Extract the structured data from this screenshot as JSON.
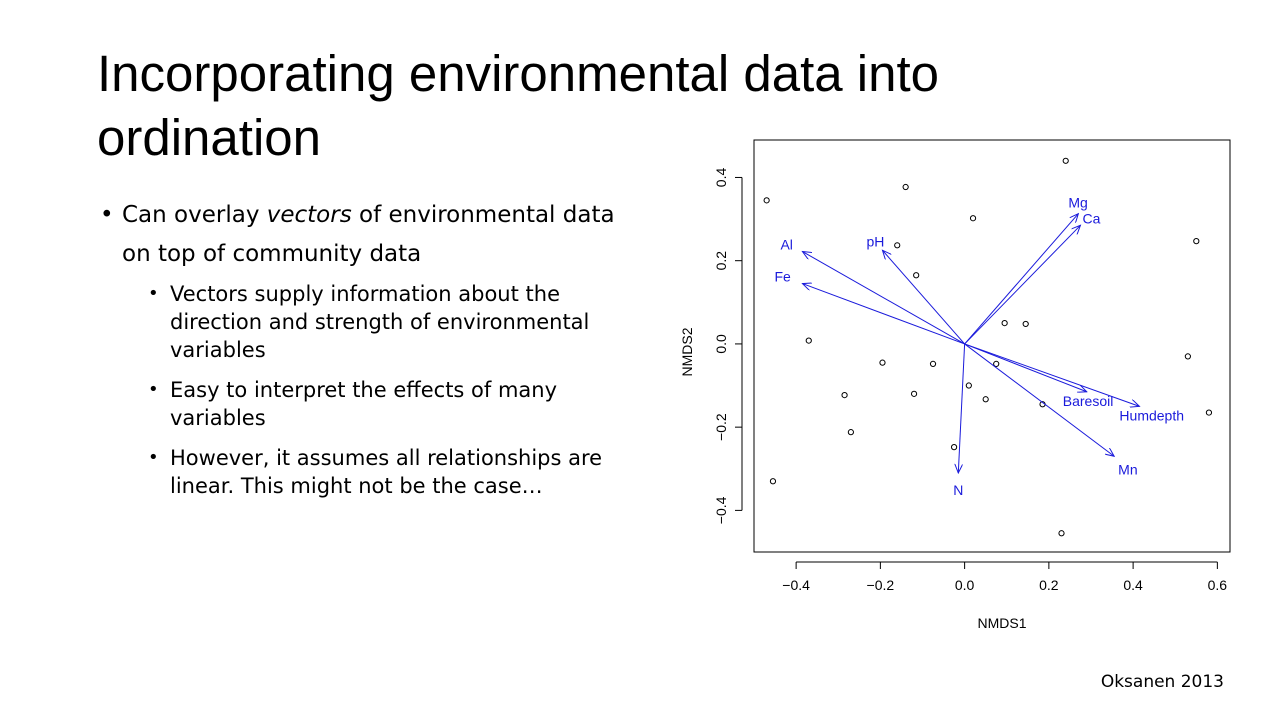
{
  "slide": {
    "title": "Incorporating environmental data into ordination",
    "bullet1": {
      "before": "Can overlay ",
      "emphasis": "vectors",
      "after": " of environmental  data on top of community data"
    },
    "sub_bullets": [
      "Vectors supply information about the direction and strength of environmental variables",
      "Easy to interpret the effects of many variables",
      "However, it assumes all relationships are linear. This might not be the case…"
    ],
    "citation": "Oksanen 2013"
  },
  "chart_data": {
    "type": "scatter",
    "xlabel": "NMDS1",
    "ylabel": "NMDS2",
    "xlim": [
      -0.5,
      0.63
    ],
    "ylim": [
      -0.5,
      0.49
    ],
    "x_ticks": [
      -0.4,
      -0.2,
      0.0,
      0.2,
      0.4,
      0.6
    ],
    "x_tick_labels": [
      "−0.4",
      "−0.2",
      "0.0",
      "0.2",
      "0.4",
      "0.6"
    ],
    "y_ticks": [
      -0.4,
      -0.2,
      0.0,
      0.2,
      0.4
    ],
    "y_tick_labels": [
      "−0.4",
      "−0.2",
      "0.0",
      "0.2",
      "0.4"
    ],
    "points": [
      {
        "x": -0.47,
        "y": 0.345
      },
      {
        "x": -0.14,
        "y": 0.377
      },
      {
        "x": 0.02,
        "y": 0.302
      },
      {
        "x": 0.24,
        "y": 0.44
      },
      {
        "x": 0.55,
        "y": 0.247
      },
      {
        "x": -0.16,
        "y": 0.237
      },
      {
        "x": -0.115,
        "y": 0.165
      },
      {
        "x": -0.37,
        "y": 0.008
      },
      {
        "x": 0.095,
        "y": 0.05
      },
      {
        "x": 0.145,
        "y": 0.048
      },
      {
        "x": -0.195,
        "y": -0.045
      },
      {
        "x": -0.075,
        "y": -0.048
      },
      {
        "x": 0.01,
        "y": -0.1
      },
      {
        "x": 0.075,
        "y": -0.048
      },
      {
        "x": 0.53,
        "y": -0.03
      },
      {
        "x": -0.285,
        "y": -0.123
      },
      {
        "x": -0.12,
        "y": -0.12
      },
      {
        "x": 0.05,
        "y": -0.133
      },
      {
        "x": 0.185,
        "y": -0.145
      },
      {
        "x": -0.27,
        "y": -0.212
      },
      {
        "x": 0.58,
        "y": -0.165
      },
      {
        "x": -0.025,
        "y": -0.248
      },
      {
        "x": -0.455,
        "y": -0.33
      },
      {
        "x": 0.23,
        "y": -0.455
      }
    ],
    "vectors": [
      {
        "name": "Mg",
        "x": 0.27,
        "y": 0.313
      },
      {
        "name": "Ca",
        "x": 0.275,
        "y": 0.285
      },
      {
        "name": "Al",
        "x": -0.385,
        "y": 0.222
      },
      {
        "name": "pH",
        "x": -0.195,
        "y": 0.225
      },
      {
        "name": "Fe",
        "x": -0.385,
        "y": 0.145
      },
      {
        "name": "Baresoil",
        "x": 0.29,
        "y": -0.115
      },
      {
        "name": "Humdepth",
        "x": 0.415,
        "y": -0.15
      },
      {
        "name": "Mn",
        "x": 0.355,
        "y": -0.27
      },
      {
        "name": "N",
        "x": -0.015,
        "y": -0.31
      }
    ],
    "vector_color": "#1a1adb"
  }
}
